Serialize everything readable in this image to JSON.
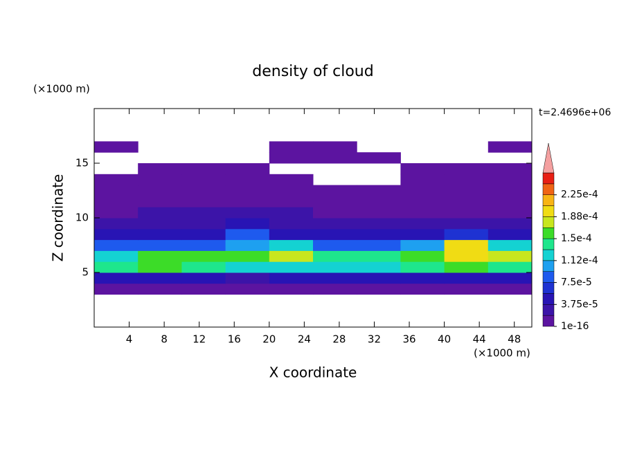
{
  "chart_data": {
    "type": "contour",
    "title": "density of cloud",
    "x_label": "X coordinate",
    "y_label": "Z coordinate",
    "x_unit": "(×1000 m)",
    "y_unit": "(×1000 m)",
    "time_label": "t=2.4696e+06",
    "xlim": [
      0,
      50
    ],
    "ylim": [
      0,
      20
    ],
    "xticks": [
      4,
      8,
      12,
      16,
      20,
      24,
      28,
      32,
      36,
      40,
      44,
      48
    ],
    "yticks": [
      5,
      10,
      15
    ],
    "x": [
      2.5,
      7.5,
      12.5,
      17.5,
      22.5,
      27.5,
      32.5,
      37.5,
      42.5,
      47.5
    ],
    "z": [
      3.5,
      4.5,
      5.5,
      6.5,
      7.5,
      8.5,
      9.5,
      10.5,
      11.5,
      12.5,
      13.5,
      14.5,
      15.5,
      16.5
    ],
    "values": [
      [
        1e-05,
        1e-05,
        1e-05,
        1e-05,
        1e-05,
        1e-05,
        1e-05,
        1e-05,
        1e-05,
        1e-05
      ],
      [
        4.5e-05,
        4.5e-05,
        4.5e-05,
        3.5e-05,
        4.5e-05,
        4.5e-05,
        4.5e-05,
        4.5e-05,
        4.5e-05,
        4.5e-05
      ],
      [
        0.00014,
        0.00015,
        0.00014,
        0.00013,
        0.00013,
        0.00012,
        0.00013,
        0.00014,
        0.00016,
        0.00014
      ],
      [
        0.00013,
        0.00015,
        0.00015,
        0.00015,
        0.00017,
        0.00014,
        0.00014,
        0.00016,
        0.0002,
        0.00017
      ],
      [
        9e-05,
        8e-05,
        8e-05,
        0.00011,
        0.00012,
        9e-05,
        9e-05,
        0.0001,
        0.00019,
        0.00012
      ],
      [
        4e-05,
        4e-05,
        4e-05,
        8e-05,
        5e-05,
        4e-05,
        4e-05,
        4e-05,
        6e-05,
        4e-05
      ],
      [
        2.5e-05,
        2.5e-05,
        3e-05,
        5e-05,
        3e-05,
        2.5e-05,
        2.5e-05,
        2.5e-05,
        2.5e-05,
        2e-05
      ],
      [
        1.5e-05,
        2e-05,
        2e-05,
        2.5e-05,
        2e-05,
        1.5e-05,
        1.5e-05,
        1.5e-05,
        1.5e-05,
        1e-05
      ],
      [
        1e-05,
        1.5e-05,
        1.5e-05,
        1e-05,
        1.5e-05,
        1e-05,
        1e-05,
        1e-05,
        5e-06,
        5e-06
      ],
      [
        5e-06,
        1e-05,
        1e-05,
        1e-05,
        5e-06,
        5e-06,
        5e-06,
        5e-06,
        5e-06,
        5e-06
      ],
      [
        5e-06,
        5e-06,
        5e-06,
        5e-06,
        5e-06,
        null,
        null,
        5e-06,
        5e-06,
        5e-06
      ],
      [
        null,
        5e-06,
        5e-06,
        5e-06,
        null,
        null,
        null,
        5e-06,
        5e-06,
        5e-06
      ],
      [
        null,
        null,
        null,
        null,
        5e-06,
        5e-06,
        5e-06,
        null,
        null,
        null
      ],
      [
        5e-06,
        null,
        null,
        null,
        5e-06,
        5e-06,
        null,
        null,
        null,
        5e-06
      ]
    ],
    "levels": [
      1e-16,
      1.875e-05,
      3.75e-05,
      5.625e-05,
      7.5e-05,
      9.375e-05,
      0.0001125,
      0.00013125,
      0.00015,
      0.00016875,
      0.0001875,
      0.00020625,
      0.000225,
      0.00024375,
      0.0002625
    ],
    "colors": [
      "#5c14a0",
      "#3c14a8",
      "#2814b4",
      "#1e32d2",
      "#1e5aee",
      "#1ea0f0",
      "#14d2d2",
      "#1ee68c",
      "#3cdc28",
      "#c8e61e",
      "#f0dc14",
      "#f8b414",
      "#f06414",
      "#e81e14",
      "#f4a0a0"
    ],
    "cticks": [
      {
        "value": 1e-16,
        "label": "1e-16"
      },
      {
        "value": 3.75e-05,
        "label": "3.75e-5"
      },
      {
        "value": 7.5e-05,
        "label": "7.5e-5"
      },
      {
        "value": 0.0001125,
        "label": "1.12e-4"
      },
      {
        "value": 0.00015,
        "label": "1.5e-4"
      },
      {
        "value": 0.0001875,
        "label": "1.88e-4"
      },
      {
        "value": 0.000225,
        "label": "2.25e-4"
      }
    ]
  }
}
